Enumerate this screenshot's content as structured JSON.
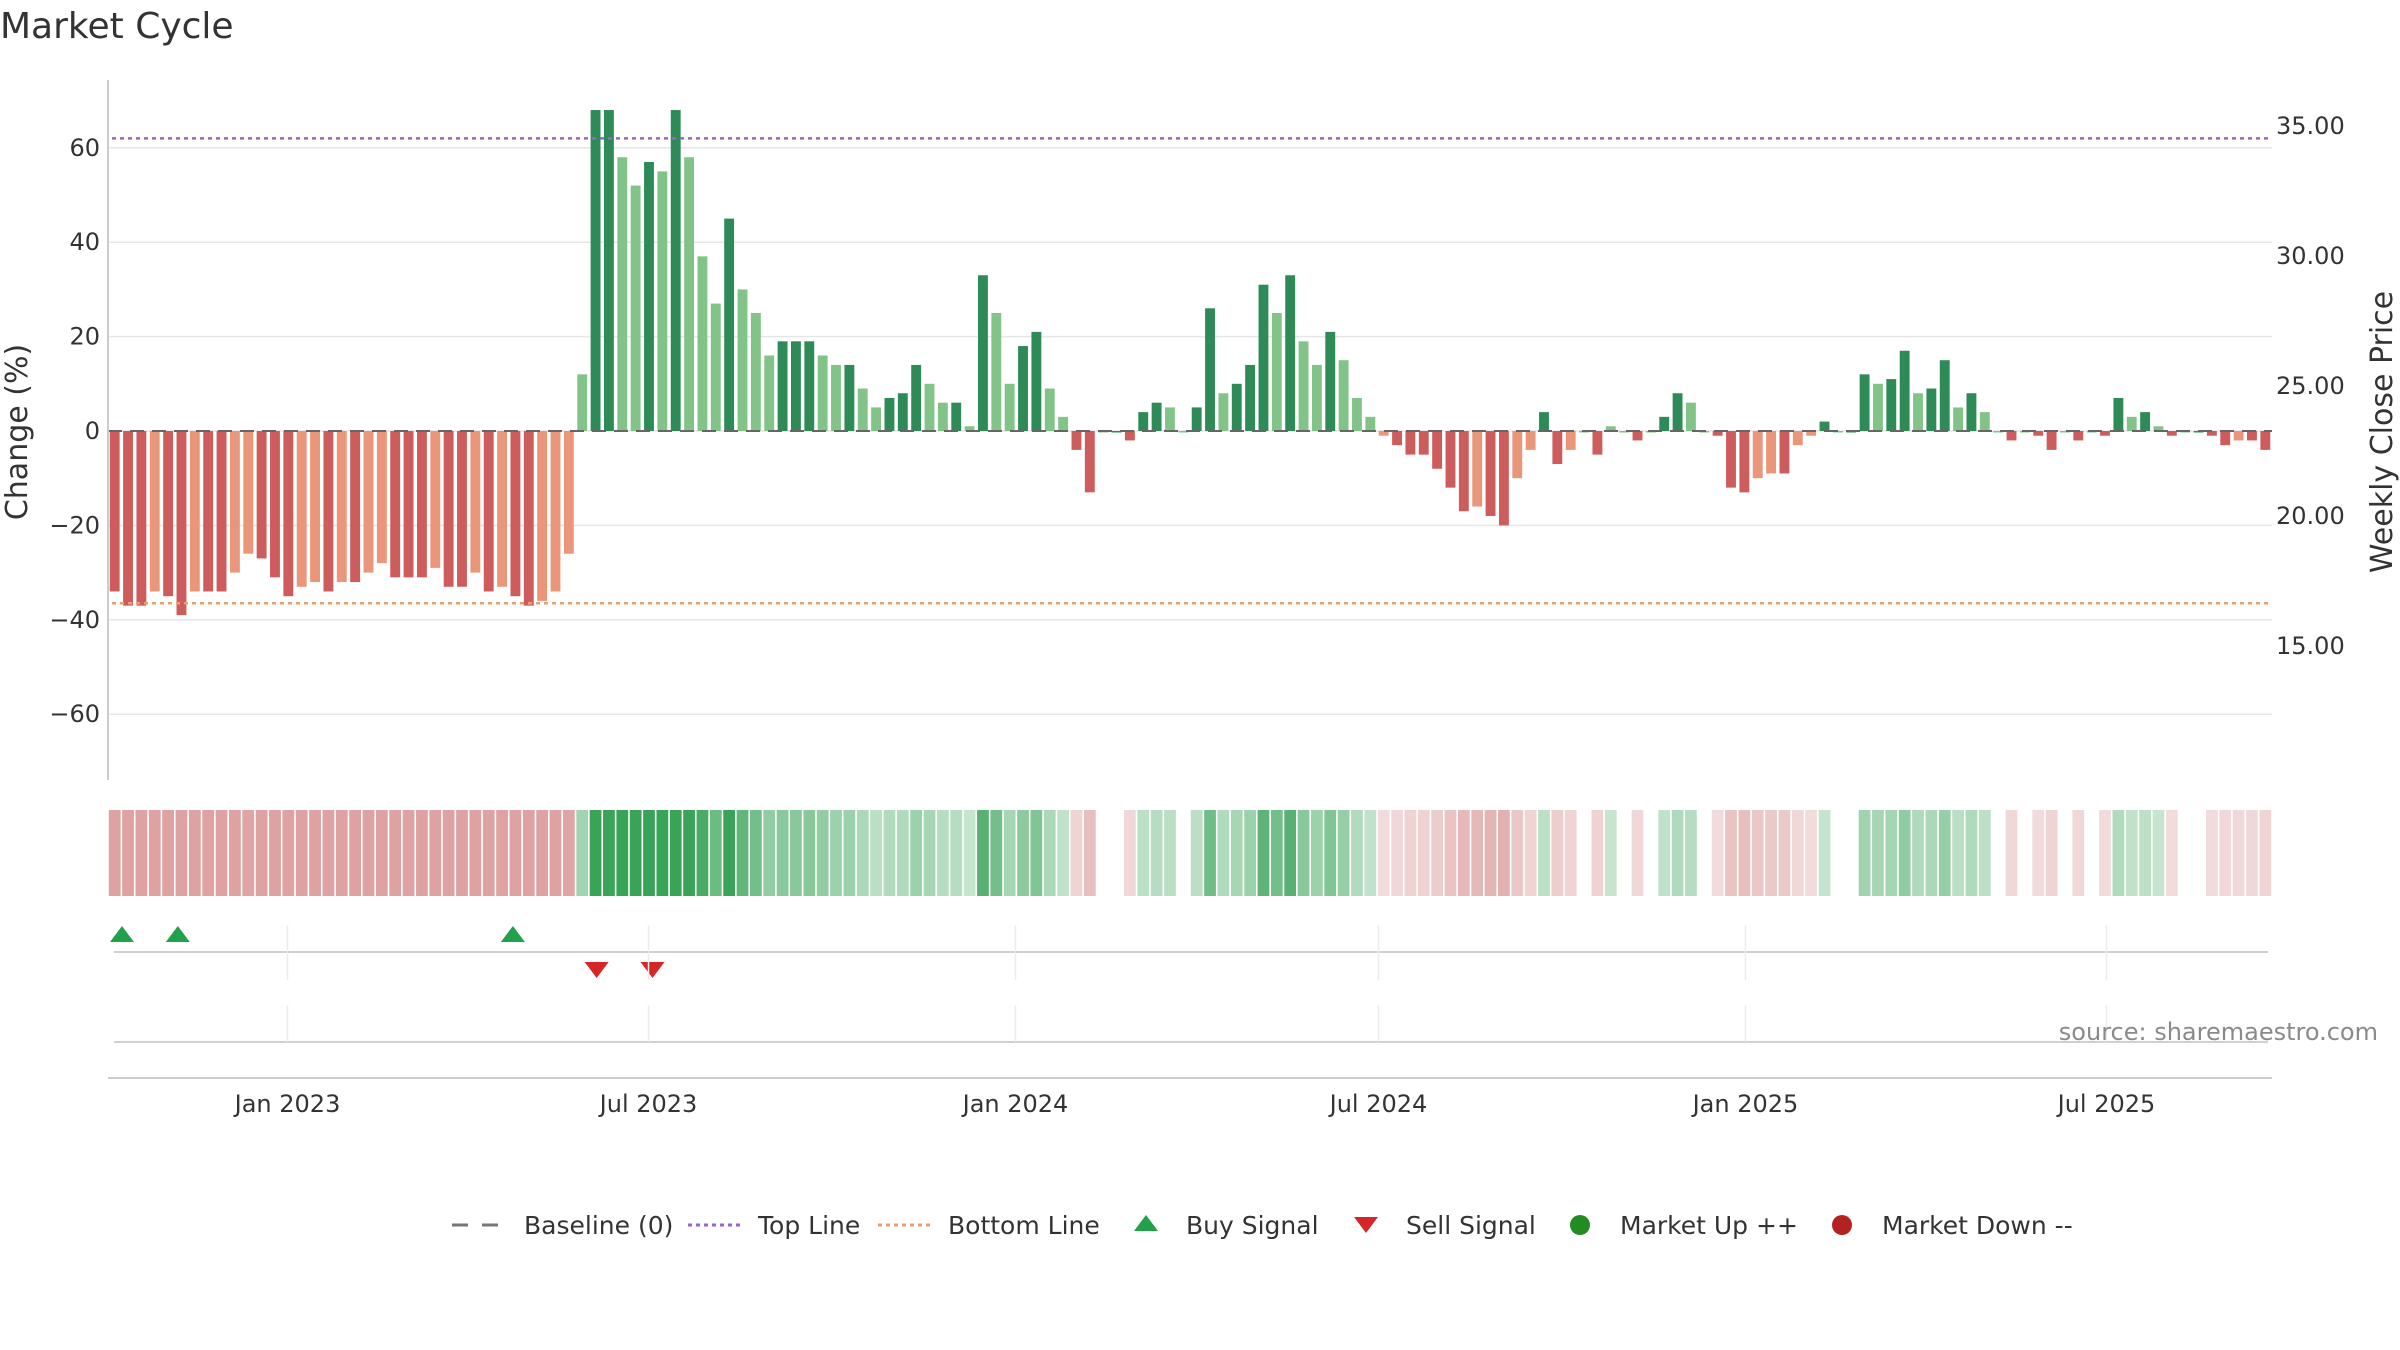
{
  "chart_data": {
    "type": "bar",
    "title": "Market Cycle",
    "ylabel_left": "Change (%)",
    "ylabel_right": "Weekly Close Price",
    "source": "source: sharemaestro.com",
    "ylim_left": [
      -74,
      74
    ],
    "yticks_left": [
      {
        "value": 60,
        "label": "60"
      },
      {
        "value": 40,
        "label": "40"
      },
      {
        "value": 20,
        "label": "20"
      },
      {
        "value": 0,
        "label": "0"
      },
      {
        "value": -20,
        "label": "−20"
      },
      {
        "value": -40,
        "label": "−40"
      },
      {
        "value": -60,
        "label": "−60"
      }
    ],
    "yticks_right": [
      {
        "value": 35,
        "label": "35.00"
      },
      {
        "value": 30,
        "label": "30.00"
      },
      {
        "value": 25,
        "label": "25.00"
      },
      {
        "value": 20,
        "label": "20.00"
      },
      {
        "value": 15,
        "label": "15.00"
      }
    ],
    "xrange": [
      "2022-10-03",
      "2025-09-22"
    ],
    "xticks": [
      {
        "date": "2023-01-01",
        "label": "Jan 2023"
      },
      {
        "date": "2023-07-01",
        "label": "Jul 2023"
      },
      {
        "date": "2024-01-01",
        "label": "Jan 2024"
      },
      {
        "date": "2024-07-01",
        "label": "Jul 2024"
      },
      {
        "date": "2025-01-01",
        "label": "Jan 2025"
      },
      {
        "date": "2025-07-01",
        "label": "Jul 2025"
      }
    ],
    "top_line": 62,
    "bottom_line": -36.5,
    "baseline": 0,
    "first_week": "2022-10-03",
    "values": [
      -34,
      -37,
      -37,
      -34,
      -35,
      -39,
      -34,
      -34,
      -34,
      -30,
      -26,
      -27,
      -31,
      -35,
      -33,
      -32,
      -34,
      -32,
      -32,
      -30,
      -28,
      -31,
      -31,
      -31,
      -29,
      -33,
      -33,
      -30,
      -34,
      -33,
      -35,
      -37,
      -36,
      -34,
      -26,
      12,
      68,
      68,
      58,
      52,
      57,
      55,
      68,
      58,
      37,
      27,
      45,
      30,
      25,
      16,
      19,
      19,
      19,
      16,
      14,
      14,
      9,
      5,
      7,
      8,
      14,
      10,
      6,
      6,
      1,
      33,
      25,
      10,
      18,
      21,
      9,
      3,
      -4,
      -13,
      0,
      0,
      -2,
      4,
      6,
      5,
      0,
      5,
      26,
      8,
      10,
      14,
      31,
      25,
      33,
      19,
      14,
      21,
      15,
      7,
      3,
      -1,
      -3,
      -5,
      -5,
      -8,
      -12,
      -17,
      -16,
      -18,
      -20,
      -10,
      -4,
      4,
      -7,
      -4,
      0,
      -5,
      1,
      0,
      -2,
      0,
      3,
      8,
      6,
      0,
      -1,
      -12,
      -13,
      -10,
      -9,
      -9,
      -3,
      -1,
      2,
      0,
      0,
      12,
      10,
      11,
      17,
      8,
      9,
      15,
      5,
      8,
      4,
      0,
      -2,
      0,
      -1,
      -4,
      0,
      -2,
      0,
      -1,
      7,
      3,
      4,
      1,
      -1,
      0,
      0,
      -1,
      -3,
      -2,
      -2,
      -4
    ],
    "buy_signals": [
      "2022-10-10",
      "2022-11-07",
      "2023-04-24"
    ],
    "sell_signals": [
      "2023-06-05",
      "2023-07-03"
    ]
  },
  "legend": [
    {
      "label": "Baseline (0)",
      "icon": "dash-line-gray",
      "color": "#777777"
    },
    {
      "label": "Top Line",
      "icon": "dotted-line-purple",
      "color": "#9966cc"
    },
    {
      "label": "Bottom Line",
      "icon": "dotted-line-orange",
      "color": "#e8a070"
    },
    {
      "label": "Buy Signal",
      "icon": "triangle-up-icon",
      "color": "#22a04a"
    },
    {
      "label": "Sell Signal",
      "icon": "triangle-down-icon",
      "color": "#d62728"
    },
    {
      "label": "Market Up ++",
      "icon": "circle-green",
      "color": "#228b22"
    },
    {
      "label": "Market Down --",
      "icon": "circle-red",
      "color": "#b22222"
    }
  ],
  "colors": {
    "strong_up": "#2e8b57",
    "weak_up": "#82c487",
    "strong_down": "#cd5c5c",
    "weak_down": "#e9967a",
    "top_line": "#9966cc",
    "bottom_line": "#e8a070",
    "buy": "#22a04a",
    "sell": "#d62728"
  }
}
